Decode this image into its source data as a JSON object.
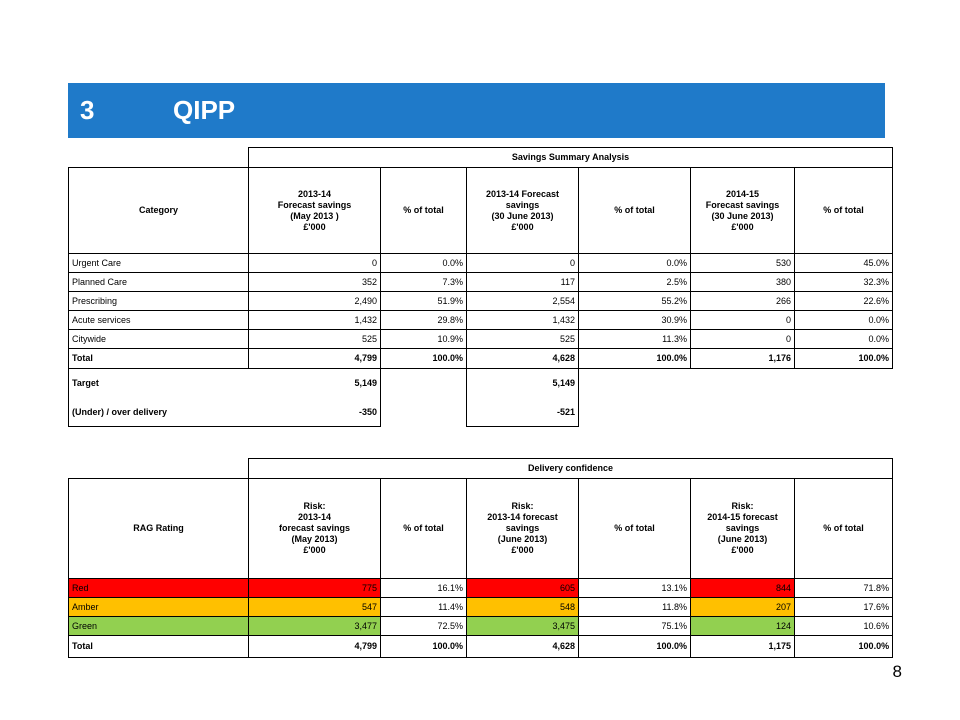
{
  "header": {
    "number": "3",
    "title": "QIPP"
  },
  "summary": {
    "title": "Savings Summary Analysis",
    "columns": [
      "Category",
      "2013-14\nForecast savings\n(May 2013 )\n£'000",
      "% of total",
      "2013-14 Forecast savings\n(30 June 2013)\n£'000",
      "% of total",
      "2014-15\nForecast savings\n(30 June 2013)\n£'000",
      "% of total"
    ],
    "rows": [
      [
        "Urgent Care",
        "0",
        "0.0%",
        "0",
        "0.0%",
        "530",
        "45.0%"
      ],
      [
        "Planned Care",
        "352",
        "7.3%",
        "117",
        "2.5%",
        "380",
        "32.3%"
      ],
      [
        "Prescribing",
        "2,490",
        "51.9%",
        "2,554",
        "55.2%",
        "266",
        "22.6%"
      ],
      [
        "Acute services",
        "1,432",
        "29.8%",
        "1,432",
        "30.9%",
        "0",
        "0.0%"
      ],
      [
        "Citywide",
        "525",
        "10.9%",
        "525",
        "11.3%",
        "0",
        "0.0%"
      ]
    ],
    "total": [
      "Total",
      "4,799",
      "100.0%",
      "4,628",
      "100.0%",
      "1,176",
      "100.0%"
    ],
    "target": {
      "label": "Target",
      "value1": "5,149",
      "value2": "5,149"
    },
    "delivery": {
      "label": "(Under) / over delivery",
      "value1": "-350",
      "value2": "-521"
    }
  },
  "confidence": {
    "title": "Delivery confidence",
    "columns": [
      "RAG Rating",
      "Risk:\n2013-14\nforecast savings\n(May 2013)\n£'000",
      "% of total",
      "Risk:\n2013-14 forecast savings\n(June 2013)\n£'000",
      "% of total",
      "Risk:\n2014-15 forecast savings\n(June 2013)\n£'000",
      "% of total"
    ],
    "rows": [
      {
        "cells": [
          "Red",
          "775",
          "16.1%",
          "605",
          "13.1%",
          "844",
          "71.8%"
        ],
        "color": "#ff0000"
      },
      {
        "cells": [
          "Amber",
          "547",
          "11.4%",
          "548",
          "11.8%",
          "207",
          "17.6%"
        ],
        "color": "#ffc000"
      },
      {
        "cells": [
          "Green",
          "3,477",
          "72.5%",
          "3,475",
          "75.1%",
          "124",
          "10.6%"
        ],
        "color": "#92d050"
      }
    ],
    "total": [
      "Total",
      "4,799",
      "100.0%",
      "4,628",
      "100.0%",
      "1,175",
      "100.0%"
    ]
  },
  "page_number": "8"
}
